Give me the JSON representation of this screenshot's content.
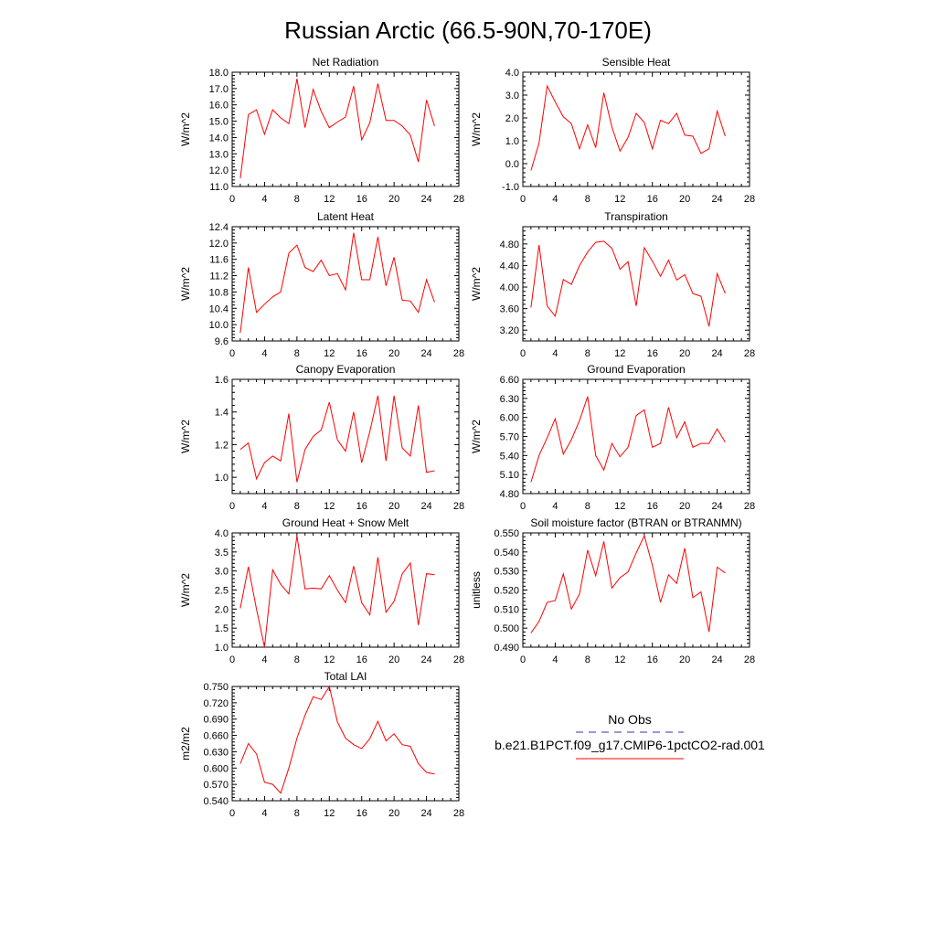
{
  "page": {
    "title": "Russian Arctic (66.5-90N,70-170E)"
  },
  "legend": {
    "obs_label": "No Obs",
    "obs_color": "#3333aa",
    "case_label": "b.e21.B1PCT.f09_g17.CMIP6-1pctCO2-rad.001",
    "case_color": "#ff0000"
  },
  "chart_data": [
    {
      "type": "line",
      "title": "Net Radiation",
      "ylabel": "W/m^2",
      "xlabel": "",
      "xlim": [
        0,
        28
      ],
      "xticks": [
        0,
        4,
        8,
        12,
        16,
        20,
        24,
        28
      ],
      "xtick_labels": [
        "0",
        "4",
        "8",
        "12",
        "16",
        "20",
        "24",
        "28"
      ],
      "ylim": [
        11.0,
        18.0
      ],
      "yticks": [
        11.0,
        12.0,
        13.0,
        14.0,
        15.0,
        16.0,
        17.0,
        18.0
      ],
      "ytick_labels": [
        "11.0",
        "12.0",
        "13.0",
        "14.0",
        "15.0",
        "16.0",
        "17.0",
        "18.0"
      ],
      "series": [
        {
          "color": "#ff0000",
          "x": [
            1,
            2,
            3,
            4,
            5,
            6,
            7,
            8,
            9,
            10,
            11,
            12,
            13,
            14,
            15,
            16,
            17,
            18,
            19,
            20,
            21,
            22,
            23,
            24,
            25
          ],
          "y": [
            11.5,
            15.4,
            15.7,
            14.2,
            15.7,
            15.2,
            14.85,
            17.6,
            14.6,
            16.95,
            15.6,
            14.6,
            14.95,
            15.25,
            17.15,
            13.85,
            14.9,
            17.3,
            15.05,
            15.05,
            14.7,
            14.15,
            12.5,
            16.3,
            14.7
          ]
        }
      ]
    },
    {
      "type": "line",
      "title": "Sensible Heat",
      "ylabel": "W/m^2",
      "xlabel": "",
      "xlim": [
        0,
        28
      ],
      "xticks": [
        0,
        4,
        8,
        12,
        16,
        20,
        24,
        28
      ],
      "xtick_labels": [
        "0",
        "4",
        "8",
        "12",
        "16",
        "20",
        "24",
        "28"
      ],
      "ylim": [
        -1.0,
        4.0
      ],
      "yticks": [
        -1.0,
        0.0,
        1.0,
        2.0,
        3.0,
        4.0
      ],
      "ytick_labels": [
        "-1.0",
        "0.0",
        "1.0",
        "2.0",
        "3.0",
        "4.0"
      ],
      "series": [
        {
          "color": "#ff0000",
          "x": [
            1,
            2,
            3,
            4,
            5,
            6,
            7,
            8,
            9,
            10,
            11,
            12,
            13,
            14,
            15,
            16,
            17,
            18,
            19,
            20,
            21,
            22,
            23,
            24,
            25
          ],
          "y": [
            -0.3,
            0.9,
            3.4,
            2.7,
            2.05,
            1.75,
            0.65,
            1.7,
            0.7,
            3.1,
            1.6,
            0.55,
            1.15,
            2.2,
            1.8,
            0.65,
            1.9,
            1.75,
            2.2,
            1.25,
            1.2,
            0.45,
            0.65,
            2.3,
            1.2
          ]
        }
      ]
    },
    {
      "type": "line",
      "title": "Latent Heat",
      "ylabel": "W/m^2",
      "xlabel": "",
      "xlim": [
        0,
        28
      ],
      "xticks": [
        0,
        4,
        8,
        12,
        16,
        20,
        24,
        28
      ],
      "xtick_labels": [
        "0",
        "4",
        "8",
        "12",
        "16",
        "20",
        "24",
        "28"
      ],
      "ylim": [
        9.6,
        12.4
      ],
      "yticks": [
        9.6,
        10.0,
        10.4,
        10.8,
        11.2,
        11.6,
        12.0,
        12.4
      ],
      "ytick_labels": [
        "9.6",
        "10.0",
        "10.4",
        "10.8",
        "11.2",
        "11.6",
        "12.0",
        "12.4"
      ],
      "series": [
        {
          "color": "#ff0000",
          "x": [
            1,
            2,
            3,
            4,
            5,
            6,
            7,
            8,
            9,
            10,
            11,
            12,
            13,
            14,
            15,
            16,
            17,
            18,
            19,
            20,
            21,
            22,
            23,
            24,
            25
          ],
          "y": [
            9.8,
            11.4,
            10.3,
            10.5,
            10.68,
            10.8,
            11.75,
            11.95,
            11.4,
            11.3,
            11.58,
            11.2,
            11.25,
            10.85,
            12.25,
            11.1,
            11.1,
            12.15,
            10.95,
            11.65,
            10.6,
            10.58,
            10.3,
            11.1,
            10.55
          ]
        }
      ]
    },
    {
      "type": "line",
      "title": "Transpiration",
      "ylabel": "W/m^2",
      "xlabel": "",
      "xlim": [
        0,
        28
      ],
      "xticks": [
        0,
        4,
        8,
        12,
        16,
        20,
        24,
        28
      ],
      "xtick_labels": [
        "0",
        "4",
        "8",
        "12",
        "16",
        "20",
        "24",
        "28"
      ],
      "ylim": [
        3.0,
        5.12
      ],
      "yticks": [
        3.2,
        3.6,
        4.0,
        4.4,
        4.8
      ],
      "ytick_labels": [
        "3.20",
        "3.60",
        "4.00",
        "4.40",
        "4.80"
      ],
      "series": [
        {
          "color": "#ff0000",
          "x": [
            1,
            2,
            3,
            4,
            5,
            6,
            7,
            8,
            9,
            10,
            11,
            12,
            13,
            14,
            15,
            16,
            17,
            18,
            19,
            20,
            21,
            22,
            23,
            24,
            25
          ],
          "y": [
            3.62,
            4.78,
            3.65,
            3.46,
            4.14,
            4.05,
            4.4,
            4.65,
            4.83,
            4.85,
            4.72,
            4.33,
            4.47,
            3.65,
            4.73,
            4.48,
            4.2,
            4.5,
            4.13,
            4.23,
            3.88,
            3.83,
            3.27,
            4.25,
            3.88
          ]
        }
      ]
    },
    {
      "type": "line",
      "title": "Canopy Evaporation",
      "ylabel": "W/m^2",
      "xlabel": "",
      "xlim": [
        0,
        28
      ],
      "xticks": [
        0,
        4,
        8,
        12,
        16,
        20,
        24,
        28
      ],
      "xtick_labels": [
        "0",
        "4",
        "8",
        "12",
        "16",
        "20",
        "24",
        "28"
      ],
      "ylim": [
        0.9,
        1.6
      ],
      "yticks": [
        1.0,
        1.2,
        1.4,
        1.6
      ],
      "ytick_labels": [
        "1.0",
        "1.2",
        "1.4",
        "1.6"
      ],
      "series": [
        {
          "color": "#ff0000",
          "x": [
            1,
            2,
            3,
            4,
            5,
            6,
            7,
            8,
            9,
            10,
            11,
            12,
            13,
            14,
            15,
            16,
            17,
            18,
            19,
            20,
            21,
            22,
            23,
            24,
            25
          ],
          "y": [
            1.17,
            1.21,
            0.99,
            1.09,
            1.13,
            1.1,
            1.39,
            0.97,
            1.17,
            1.25,
            1.29,
            1.46,
            1.23,
            1.16,
            1.4,
            1.09,
            1.28,
            1.5,
            1.1,
            1.5,
            1.18,
            1.13,
            1.44,
            1.03,
            1.04
          ]
        }
      ]
    },
    {
      "type": "line",
      "title": "Ground Evaporation",
      "ylabel": "W/m^2",
      "xlabel": "",
      "xlim": [
        0,
        28
      ],
      "xticks": [
        0,
        4,
        8,
        12,
        16,
        20,
        24,
        28
      ],
      "xtick_labels": [
        "0",
        "4",
        "8",
        "12",
        "16",
        "20",
        "24",
        "28"
      ],
      "ylim": [
        4.8,
        6.6
      ],
      "yticks": [
        4.8,
        5.1,
        5.4,
        5.7,
        6.0,
        6.3,
        6.6
      ],
      "ytick_labels": [
        "4.80",
        "5.10",
        "5.40",
        "5.70",
        "6.00",
        "6.30",
        "6.60"
      ],
      "series": [
        {
          "color": "#ff0000",
          "x": [
            1,
            2,
            3,
            4,
            5,
            6,
            7,
            8,
            9,
            10,
            11,
            12,
            13,
            14,
            15,
            16,
            17,
            18,
            19,
            20,
            21,
            22,
            23,
            24,
            25
          ],
          "y": [
            4.98,
            5.4,
            5.68,
            5.98,
            5.42,
            5.65,
            5.95,
            6.33,
            5.4,
            5.17,
            5.59,
            5.38,
            5.53,
            6.03,
            6.12,
            5.53,
            5.59,
            6.16,
            5.68,
            5.93,
            5.53,
            5.59,
            5.59,
            5.82,
            5.61
          ]
        }
      ]
    },
    {
      "type": "line",
      "title": "Ground Heat + Snow Melt",
      "ylabel": "W/m^2",
      "xlabel": "",
      "xlim": [
        0,
        28
      ],
      "xticks": [
        0,
        4,
        8,
        12,
        16,
        20,
        24,
        28
      ],
      "xtick_labels": [
        "0",
        "4",
        "8",
        "12",
        "16",
        "20",
        "24",
        "28"
      ],
      "ylim": [
        1.0,
        4.0
      ],
      "yticks": [
        1.0,
        1.5,
        2.0,
        2.5,
        3.0,
        3.5,
        4.0
      ],
      "ytick_labels": [
        "1.0",
        "1.5",
        "2.0",
        "2.5",
        "3.0",
        "3.5",
        "4.0"
      ],
      "series": [
        {
          "color": "#ff0000",
          "x": [
            1,
            2,
            3,
            4,
            5,
            6,
            7,
            8,
            9,
            10,
            11,
            12,
            13,
            14,
            15,
            16,
            17,
            18,
            19,
            20,
            21,
            22,
            23,
            24,
            25
          ],
          "y": [
            2.02,
            3.11,
            2.0,
            1.0,
            3.03,
            2.65,
            2.4,
            3.92,
            2.53,
            2.55,
            2.53,
            2.88,
            2.5,
            2.17,
            3.13,
            2.17,
            1.85,
            3.36,
            1.92,
            2.2,
            2.92,
            3.21,
            1.58,
            2.93,
            2.9
          ]
        }
      ]
    },
    {
      "type": "line",
      "title": "Soil moisture factor (BTRAN or BTRANMN)",
      "ylabel": "unitless",
      "xlabel": "",
      "xlim": [
        0,
        28
      ],
      "xticks": [
        0,
        4,
        8,
        12,
        16,
        20,
        24,
        28
      ],
      "xtick_labels": [
        "0",
        "4",
        "8",
        "12",
        "16",
        "20",
        "24",
        "28"
      ],
      "ylim": [
        0.49,
        0.55
      ],
      "yticks": [
        0.49,
        0.5,
        0.51,
        0.52,
        0.53,
        0.54,
        0.55
      ],
      "ytick_labels": [
        "0.490",
        "0.500",
        "0.510",
        "0.520",
        "0.530",
        "0.540",
        "0.550"
      ],
      "series": [
        {
          "color": "#ff0000",
          "x": [
            1,
            2,
            3,
            4,
            5,
            6,
            7,
            8,
            9,
            10,
            11,
            12,
            13,
            14,
            15,
            16,
            17,
            18,
            19,
            20,
            21,
            22,
            23,
            24,
            25
          ],
          "y": [
            0.4975,
            0.5035,
            0.5135,
            0.5145,
            0.5285,
            0.51,
            0.518,
            0.541,
            0.5275,
            0.5455,
            0.521,
            0.5265,
            0.5295,
            0.5395,
            0.5485,
            0.533,
            0.5135,
            0.528,
            0.5235,
            0.542,
            0.516,
            0.519,
            0.498,
            0.532,
            0.529
          ]
        }
      ]
    },
    {
      "type": "line",
      "title": "Total LAI",
      "ylabel": "m2/m2",
      "xlabel": "",
      "xlim": [
        0,
        28
      ],
      "xticks": [
        0,
        4,
        8,
        12,
        16,
        20,
        24,
        28
      ],
      "xtick_labels": [
        "0",
        "4",
        "8",
        "12",
        "16",
        "20",
        "24",
        "28"
      ],
      "ylim": [
        0.54,
        0.75
      ],
      "yticks": [
        0.54,
        0.57,
        0.6,
        0.63,
        0.66,
        0.69,
        0.72,
        0.75
      ],
      "ytick_labels": [
        "0.540",
        "0.570",
        "0.600",
        "0.630",
        "0.660",
        "0.690",
        "0.720",
        "0.750"
      ],
      "series": [
        {
          "color": "#ff0000",
          "x": [
            1,
            2,
            3,
            4,
            5,
            6,
            7,
            8,
            9,
            10,
            11,
            12,
            13,
            14,
            15,
            16,
            17,
            18,
            19,
            20,
            21,
            22,
            23,
            24,
            25
          ],
          "y": [
            0.608,
            0.645,
            0.626,
            0.574,
            0.57,
            0.554,
            0.6,
            0.655,
            0.697,
            0.731,
            0.726,
            0.75,
            0.685,
            0.655,
            0.643,
            0.636,
            0.654,
            0.686,
            0.65,
            0.663,
            0.643,
            0.64,
            0.608,
            0.592,
            0.589
          ]
        }
      ]
    }
  ]
}
